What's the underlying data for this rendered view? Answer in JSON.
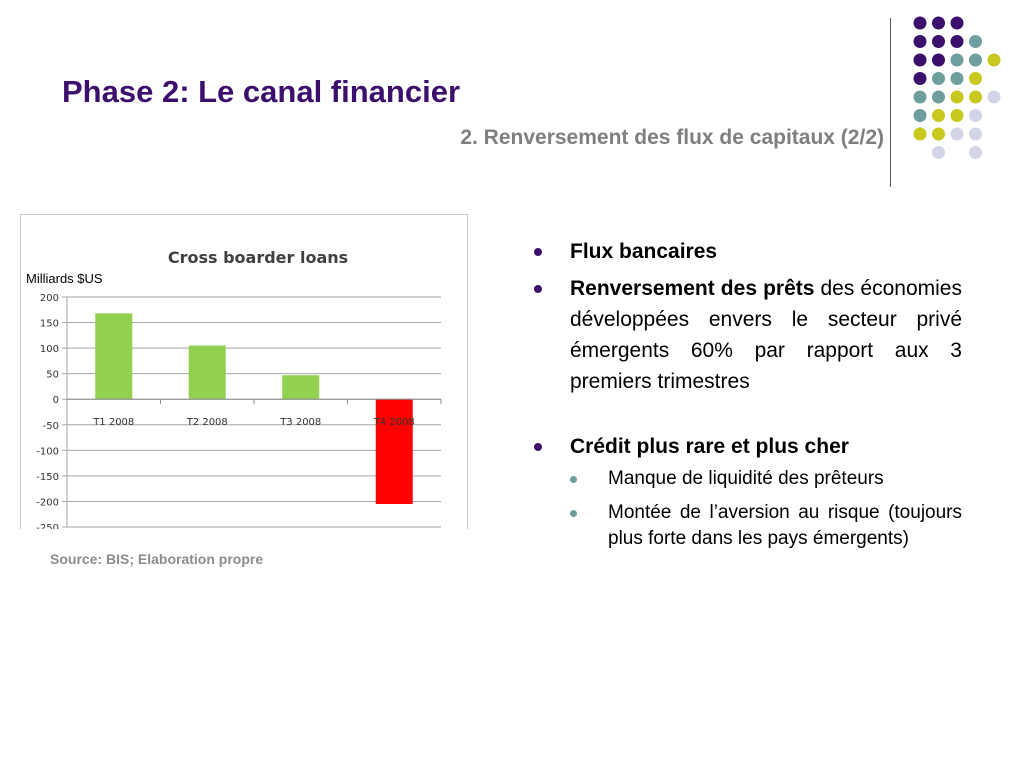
{
  "slide": {
    "title": "Phase 2: Le canal financier",
    "subtitle": "2. Renversement des flux de capitaux (2/2)",
    "unit_label": "Milliards $US",
    "source": "Source: BIS; Elaboration propre",
    "colors": {
      "title": "#3b0f6b",
      "bullet": "#3b0f6b",
      "sub_bullet": "#6f9e9e",
      "bar_positive": "#92d050",
      "bar_negative": "#ff0000",
      "dot_purple": "#3b0f6b",
      "dot_teal": "#6f9e9e",
      "dot_yellow": "#c8c81e",
      "dot_lavender": "#d4d4e8"
    }
  },
  "dots_grid": [
    [
      "purple",
      "purple",
      "purple",
      null,
      null
    ],
    [
      "purple",
      "purple",
      "purple",
      "teal",
      null
    ],
    [
      "purple",
      "purple",
      "teal",
      "teal",
      "yellow"
    ],
    [
      "purple",
      "teal",
      "teal",
      "yellow",
      null
    ],
    [
      "teal",
      "teal",
      "yellow",
      "yellow",
      "lavender"
    ],
    [
      "teal",
      "yellow",
      "yellow",
      "lavender",
      null
    ],
    [
      "yellow",
      "yellow",
      "lavender",
      "lavender",
      null
    ],
    [
      null,
      "lavender",
      null,
      "lavender",
      null
    ]
  ],
  "chart_data": {
    "type": "bar",
    "title": "Cross boarder loans",
    "categories": [
      "T1 2008",
      "T2 2008",
      "T3 2008",
      "T4 2008"
    ],
    "values": [
      168,
      105,
      47,
      -205
    ],
    "ylim": [
      -250,
      200
    ],
    "yticks": [
      200,
      150,
      100,
      50,
      0,
      -50,
      -100,
      -150,
      -200,
      -250
    ],
    "grid": true,
    "legend": "none"
  },
  "bullets": {
    "b1": {
      "bold": "Flux bancaires"
    },
    "b2": {
      "bold": "Renversement des prêts",
      "text": " des économies développées envers le secteur privé émergents 60% par rapport aux 3 premiers trimestres"
    },
    "b3": {
      "bold": "Crédit plus rare et plus cher",
      "sub": [
        "Manque de liquidité des prêteurs",
        "Montée de l’aversion au risque (toujours plus forte dans les pays émergents)"
      ]
    }
  }
}
